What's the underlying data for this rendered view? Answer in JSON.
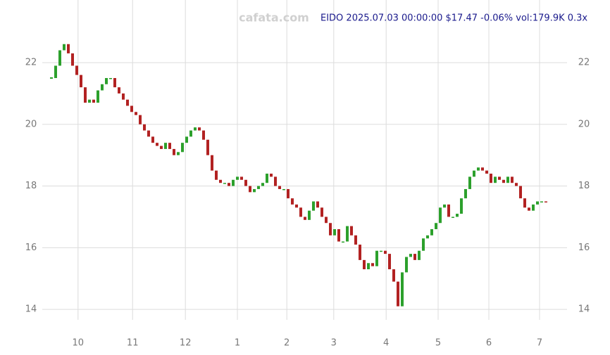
{
  "chart_data": {
    "type": "candlestick",
    "title": "EIDO 2025.07.03 00:00:00 $17.47 -0.06% vol:179.9K 0.3x",
    "watermark": "cafata.com",
    "values": [
      21.5,
      21.9,
      22.4,
      22.6,
      22.3,
      21.9,
      21.6,
      21.2,
      20.7,
      20.8,
      20.7,
      21.1,
      21.3,
      21.5,
      21.5,
      21.2,
      21.0,
      20.8,
      20.6,
      20.4,
      20.3,
      20.0,
      19.8,
      19.6,
      19.4,
      19.3,
      19.2,
      19.4,
      19.2,
      19.0,
      19.1,
      19.4,
      19.6,
      19.8,
      19.9,
      19.8,
      19.5,
      19.0,
      18.5,
      18.2,
      18.1,
      18.1,
      18.0,
      18.2,
      18.3,
      18.2,
      18.0,
      17.8,
      17.9,
      18.0,
      18.1,
      18.4,
      18.3,
      18.0,
      17.9,
      17.9,
      17.6,
      17.4,
      17.3,
      17.0,
      16.9,
      17.2,
      17.5,
      17.3,
      17.0,
      16.8,
      16.4,
      16.6,
      16.2,
      16.2,
      16.7,
      16.4,
      16.1,
      15.6,
      15.3,
      15.5,
      15.4,
      15.9,
      15.9,
      15.8,
      15.3,
      14.9,
      14.1,
      15.2,
      15.7,
      15.8,
      15.6,
      15.9,
      16.3,
      16.4,
      16.6,
      16.8,
      17.3,
      17.4,
      17.0,
      17.0,
      17.1,
      17.6,
      17.9,
      18.3,
      18.5,
      18.6,
      18.5,
      18.4,
      18.1,
      18.3,
      18.2,
      18.1,
      18.3,
      18.1,
      18.0,
      17.6,
      17.3,
      17.2,
      17.4,
      17.5,
      17.5,
      17.47
    ],
    "up_color": "#2ca02c",
    "down_color": "#b22222",
    "xlim": [
      0,
      117
    ],
    "xticks": [
      {
        "value": 6.3,
        "label": "10"
      },
      {
        "value": 19.2,
        "label": "11"
      },
      {
        "value": 31.7,
        "label": "12"
      },
      {
        "value": 44,
        "label": "1"
      },
      {
        "value": 55.7,
        "label": "2"
      },
      {
        "value": 66.8,
        "label": "3"
      },
      {
        "value": 79.2,
        "label": "4"
      },
      {
        "value": 91.5,
        "label": "5"
      },
      {
        "value": 103.5,
        "label": "6"
      },
      {
        "value": 115.5,
        "label": "7"
      }
    ],
    "ylim": [
      13.66,
      24.03
    ],
    "yticks": [
      14,
      16,
      18,
      20,
      22
    ],
    "grid": true
  }
}
